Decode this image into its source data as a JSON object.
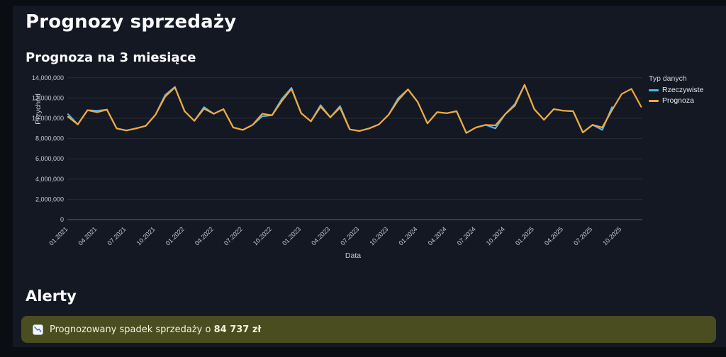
{
  "page": {
    "title": "Prognozy sprzedaży"
  },
  "colors": {
    "page_bg": "#0a0d12",
    "panel_bg": "#141823",
    "actual": "#55b6e7",
    "forecast": "#f0a93c",
    "grid": "#262c38",
    "axis_line": "#4a5160",
    "alert_bg": "#4a4d20",
    "alert_text": "#f2f2dc"
  },
  "chart": {
    "title": "Prognoza na 3 miesiące",
    "xlabel": "Data",
    "ylabel": "Przychód",
    "legend": {
      "title": "Typ danych",
      "items": [
        {
          "label": "Rzeczywiste",
          "color": "#55b6e7"
        },
        {
          "label": "Prognoza",
          "color": "#f0a93c"
        }
      ]
    }
  },
  "chart_data": {
    "type": "line",
    "title": "Prognoza na 3 miesiące",
    "xlabel": "Data",
    "ylabel": "Przychód",
    "ylim": [
      0,
      14000000
    ],
    "grid": true,
    "legend_position": "right",
    "x": [
      "01.2021",
      "02.2021",
      "03.2021",
      "04.2021",
      "05.2021",
      "06.2021",
      "07.2021",
      "08.2021",
      "09.2021",
      "10.2021",
      "11.2021",
      "12.2021",
      "01.2022",
      "02.2022",
      "03.2022",
      "04.2022",
      "05.2022",
      "06.2022",
      "07.2022",
      "08.2022",
      "09.2022",
      "10.2022",
      "11.2022",
      "12.2022",
      "01.2023",
      "02.2023",
      "03.2023",
      "04.2023",
      "05.2023",
      "06.2023",
      "07.2023",
      "08.2023",
      "09.2023",
      "10.2023",
      "11.2023",
      "12.2023",
      "01.2024",
      "02.2024",
      "03.2024",
      "04.2024",
      "05.2024",
      "06.2024",
      "07.2024",
      "08.2024",
      "09.2024",
      "10.2024",
      "11.2024",
      "12.2024",
      "01.2025",
      "02.2025",
      "03.2025",
      "04.2025",
      "05.2025",
      "06.2025",
      "07.2025",
      "08.2025",
      "09.2025",
      "10.2025",
      "11.2025",
      "12.2025"
    ],
    "xtick_labels": [
      "01.2021",
      "04.2021",
      "07.2021",
      "10.2021",
      "01.2022",
      "04.2022",
      "07.2022",
      "10.2022",
      "01.2023",
      "04.2023",
      "07.2023",
      "10.2023",
      "01.2024",
      "04.2024",
      "07.2024",
      "10.2024",
      "01.2025",
      "04.2025",
      "07.2025",
      "10.2025"
    ],
    "ytick_values": [
      0,
      2000000,
      4000000,
      6000000,
      8000000,
      10000000,
      12000000,
      14000000
    ],
    "ytick_labels": [
      "0",
      "2,000,000",
      "4,000,000",
      "6,000,000",
      "8,000,000",
      "10,000,000",
      "12,000,000",
      "14,000,000"
    ],
    "series": [
      {
        "name": "Rzeczywiste",
        "color": "#55b6e7",
        "values": [
          10400000,
          9400000,
          10800000,
          10750000,
          10850000,
          9000000,
          8800000,
          9000000,
          9250000,
          10350000,
          12300000,
          13100000,
          10700000,
          9750000,
          11100000,
          10450000,
          10900000,
          9100000,
          8850000,
          9350000,
          10200000,
          10300000,
          11900000,
          13000000,
          10500000,
          9700000,
          11300000,
          10100000,
          11200000,
          8900000,
          8750000,
          9000000,
          9400000,
          10350000,
          12000000,
          12850000,
          11600000,
          9500000,
          10600000,
          10500000,
          10700000,
          8550000,
          9100000,
          9350000,
          9000000,
          10400000,
          11400000,
          13300000,
          10900000,
          9850000,
          10900000,
          10750000,
          10700000,
          8600000,
          9350000,
          8850000,
          11100000
        ]
      },
      {
        "name": "Prognoza",
        "color": "#f0a93c",
        "values": [
          10150000,
          9400000,
          10800000,
          10600000,
          10850000,
          9000000,
          8800000,
          9000000,
          9250000,
          10350000,
          12150000,
          13050000,
          10700000,
          9750000,
          10950000,
          10450000,
          10900000,
          9100000,
          8850000,
          9350000,
          10450000,
          10300000,
          11700000,
          12900000,
          10500000,
          9700000,
          11150000,
          10100000,
          11050000,
          8900000,
          8750000,
          9000000,
          9400000,
          10350000,
          11800000,
          12850000,
          11600000,
          9500000,
          10600000,
          10500000,
          10700000,
          8550000,
          9100000,
          9350000,
          9300000,
          10400000,
          11250000,
          13300000,
          10900000,
          9850000,
          10900000,
          10750000,
          10700000,
          8600000,
          9350000,
          9100000,
          10800000,
          12400000,
          12900000,
          11150000
        ]
      }
    ]
  },
  "alerts": {
    "heading": "Alerty",
    "items": [
      {
        "icon": "chart-decreasing-icon",
        "text": "Prognozowany spadek sprzedaży o",
        "value": "84 737 zł"
      }
    ]
  }
}
